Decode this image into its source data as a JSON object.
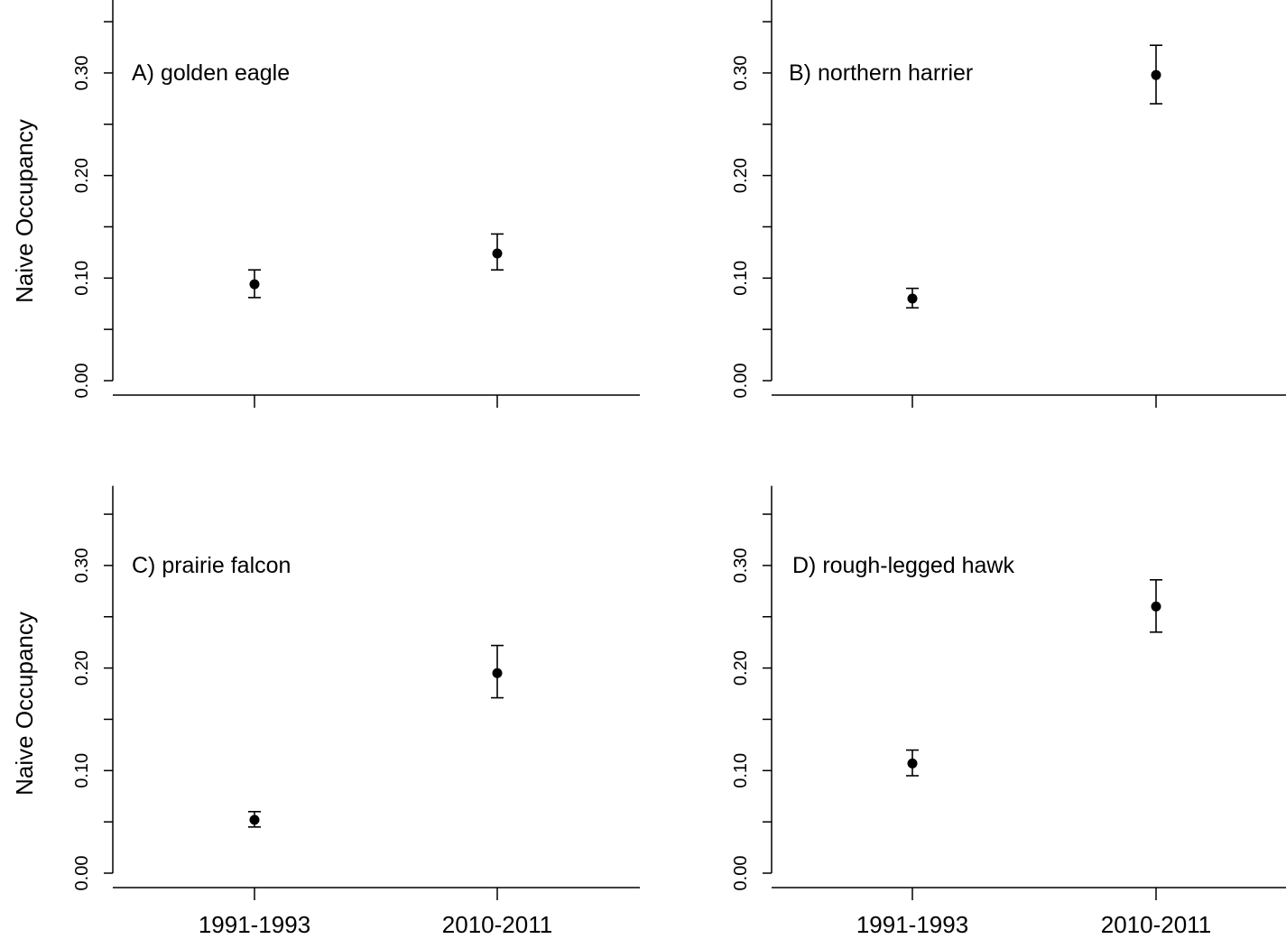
{
  "figure": {
    "ylabel": "Naive Occupancy"
  },
  "chart_data": [
    {
      "type": "scatter",
      "panel": "A",
      "title": "A) golden eagle",
      "categories": [
        "1991-1993",
        "2010-2011"
      ],
      "values": [
        0.094,
        0.124
      ],
      "err_low": [
        0.081,
        0.108
      ],
      "err_high": [
        0.108,
        0.143
      ],
      "ylabel": "Naive Occupancy",
      "xlabel": "",
      "ylim": [
        0,
        0.36
      ],
      "yticks": [
        "0.00",
        "0.10",
        "0.20",
        "0.30"
      ],
      "show_x_labels": false,
      "show_y_label": true
    },
    {
      "type": "scatter",
      "panel": "B",
      "title": "B) northern harrier",
      "categories": [
        "1991-1993",
        "2010-2011"
      ],
      "values": [
        0.08,
        0.298
      ],
      "err_low": [
        0.071,
        0.27
      ],
      "err_high": [
        0.09,
        0.327
      ],
      "ylabel": "",
      "xlabel": "",
      "ylim": [
        0,
        0.36
      ],
      "yticks": [
        "0.00",
        "0.10",
        "0.20",
        "0.30"
      ],
      "show_x_labels": false,
      "show_y_label": false
    },
    {
      "type": "scatter",
      "panel": "C",
      "title": "C) prairie falcon",
      "categories": [
        "1991-1993",
        "2010-2011"
      ],
      "values": [
        0.052,
        0.195
      ],
      "err_low": [
        0.045,
        0.171
      ],
      "err_high": [
        0.06,
        0.222
      ],
      "ylabel": "Naive Occupancy",
      "xlabel": "",
      "ylim": [
        0,
        0.36
      ],
      "yticks": [
        "0.00",
        "0.10",
        "0.20",
        "0.30"
      ],
      "show_x_labels": true,
      "show_y_label": true
    },
    {
      "type": "scatter",
      "panel": "D",
      "title": "D) rough-legged hawk",
      "categories": [
        "1991-1993",
        "2010-2011"
      ],
      "values": [
        0.107,
        0.26
      ],
      "err_low": [
        0.095,
        0.235
      ],
      "err_high": [
        0.12,
        0.286
      ],
      "ylabel": "",
      "xlabel": "",
      "ylim": [
        0,
        0.36
      ],
      "yticks": [
        "0.00",
        "0.10",
        "0.20",
        "0.30"
      ],
      "show_x_labels": true,
      "show_y_label": false
    }
  ]
}
